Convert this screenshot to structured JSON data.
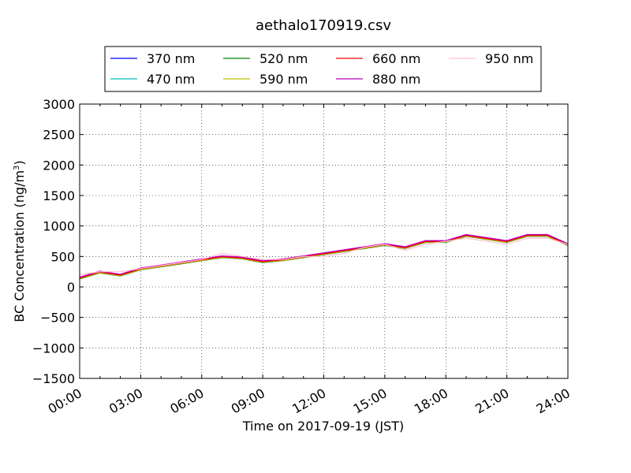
{
  "chart_data": {
    "type": "line",
    "title": "aethalo170919.csv",
    "xlabel": "Time on 2017-09-19 (JST)",
    "ylabel_prefix": "BC Concentration (ng/m",
    "ylabel_sup": "3",
    "ylabel_suffix": ")",
    "xlim": [
      "00:00",
      "24:00"
    ],
    "ylim": [
      -1500,
      3000
    ],
    "grid": true,
    "legend_position": "top",
    "x_tick_labels": [
      "00:00",
      "03:00",
      "06:00",
      "09:00",
      "12:00",
      "15:00",
      "18:00",
      "21:00",
      "24:00"
    ],
    "y_tick_labels": [
      "3000",
      "2500",
      "2000",
      "1500",
      "1000",
      "500",
      "0",
      "−500",
      "−1000",
      "−1500"
    ],
    "y_ticks": [
      3000,
      2500,
      2000,
      1500,
      1000,
      500,
      0,
      -500,
      -1000,
      -1500
    ],
    "x": [
      "00:00",
      "01:00",
      "02:00",
      "03:00",
      "04:00",
      "05:00",
      "06:00",
      "07:00",
      "08:00",
      "09:00",
      "10:00",
      "11:00",
      "12:00",
      "13:00",
      "14:00",
      "15:00",
      "16:00",
      "17:00",
      "18:00",
      "19:00",
      "20:00",
      "21:00",
      "22:00",
      "23:00",
      "24:00"
    ],
    "series": [
      {
        "name": "370 nm",
        "color": "#0000ff",
        "values": [
          150,
          250,
          200,
          300,
          350,
          400,
          450,
          500,
          480,
          420,
          450,
          500,
          550,
          600,
          650,
          700,
          650,
          750,
          750,
          850,
          800,
          750,
          850,
          850,
          700
        ]
      },
      {
        "name": "470 nm",
        "color": "#00bfbf",
        "values": [
          140,
          240,
          190,
          290,
          340,
          390,
          440,
          490,
          470,
          410,
          440,
          490,
          540,
          590,
          640,
          690,
          640,
          740,
          740,
          840,
          790,
          740,
          840,
          840,
          690
        ]
      },
      {
        "name": "520 nm",
        "color": "#008000",
        "values": [
          130,
          230,
          180,
          280,
          330,
          380,
          430,
          480,
          460,
          400,
          430,
          480,
          530,
          580,
          630,
          680,
          630,
          730,
          730,
          830,
          780,
          730,
          830,
          830,
          680
        ]
      },
      {
        "name": "590 nm",
        "color": "#bfbf00",
        "values": [
          135,
          235,
          185,
          285,
          335,
          385,
          435,
          485,
          465,
          405,
          435,
          485,
          535,
          585,
          635,
          685,
          635,
          735,
          735,
          835,
          785,
          735,
          835,
          835,
          685
        ]
      },
      {
        "name": "660 nm",
        "color": "#ff0000",
        "values": [
          145,
          245,
          195,
          295,
          345,
          395,
          445,
          495,
          475,
          415,
          445,
          495,
          545,
          595,
          645,
          695,
          645,
          745,
          745,
          845,
          795,
          745,
          845,
          845,
          695
        ]
      },
      {
        "name": "880 nm",
        "color": "#bf00bf",
        "values": [
          160,
          260,
          210,
          310,
          360,
          410,
          460,
          510,
          490,
          430,
          460,
          510,
          560,
          610,
          660,
          710,
          660,
          760,
          760,
          860,
          810,
          760,
          860,
          860,
          710
        ]
      },
      {
        "name": "950 nm",
        "color": "#ffc0cb",
        "values": [
          200,
          250,
          250,
          300,
          350,
          400,
          450,
          550,
          500,
          450,
          450,
          500,
          500,
          550,
          650,
          700,
          600,
          700,
          750,
          800,
          750,
          700,
          800,
          800,
          700
        ]
      }
    ]
  }
}
